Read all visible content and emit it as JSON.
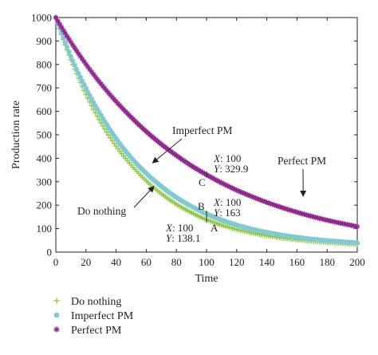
{
  "chart_data": {
    "type": "scatter",
    "xlabel": "Time",
    "ylabel": "Production rate",
    "xlim": [
      0,
      200
    ],
    "ylim": [
      0,
      1000
    ],
    "xticks": [
      0,
      20,
      40,
      60,
      80,
      100,
      120,
      140,
      160,
      180,
      200
    ],
    "yticks": [
      0,
      100,
      200,
      300,
      400,
      500,
      600,
      700,
      800,
      900,
      1000
    ],
    "grid": false,
    "legend_position": "bottom-left, below plot",
    "x": [
      0,
      10,
      20,
      30,
      40,
      50,
      60,
      70,
      80,
      90,
      100,
      110,
      120,
      130,
      140,
      150,
      160,
      170,
      180,
      190,
      200
    ],
    "series": [
      {
        "name": "Do nothing",
        "marker": "+",
        "color": "#8cc63f",
        "values": [
          1000,
          820,
          672,
          551,
          452,
          371,
          304,
          249,
          204,
          168,
          138,
          115,
          97,
          82,
          70,
          61,
          53,
          47,
          42,
          38,
          34
        ]
      },
      {
        "name": "Imperfect PM",
        "marker": "circle",
        "color": "#7fcbd1",
        "values": [
          1000,
          834,
          698,
          583,
          484,
          402,
          336,
          280,
          233,
          195,
          163,
          137,
          115,
          98,
          84,
          72,
          63,
          55,
          49,
          44,
          39
        ]
      },
      {
        "name": "Perfect PM",
        "marker": "asterisk",
        "color": "#92278f",
        "values": [
          1000,
          895,
          801,
          717,
          642,
          575,
          514,
          460,
          412,
          368,
          330,
          295,
          264,
          237,
          212,
          190,
          170,
          152,
          136,
          122,
          109
        ]
      }
    ],
    "annotations": {
      "curve_labels": [
        {
          "text": "Imperfect PM",
          "series": 1,
          "x": 60,
          "y": 360
        },
        {
          "text": "Do nothing",
          "series": 0,
          "x": 64,
          "y": 290
        },
        {
          "text": "Perfect PM",
          "series": 2,
          "x": 162,
          "y": 225
        }
      ],
      "points": [
        {
          "letter": "A",
          "x": 100,
          "y": 138.1,
          "x_label": "X",
          "x_text": ": 100",
          "y_label": "Y",
          "y_text": ": 138.1"
        },
        {
          "letter": "B",
          "x": 100,
          "y": 163,
          "x_label": "X",
          "x_text": ": 100",
          "y_label": "Y",
          "y_text": ": 163"
        },
        {
          "letter": "C",
          "x": 100,
          "y": 329.9,
          "x_label": "X",
          "x_text": ": 100",
          "y_label": "Y",
          "y_text": ": 329.9"
        }
      ]
    }
  }
}
